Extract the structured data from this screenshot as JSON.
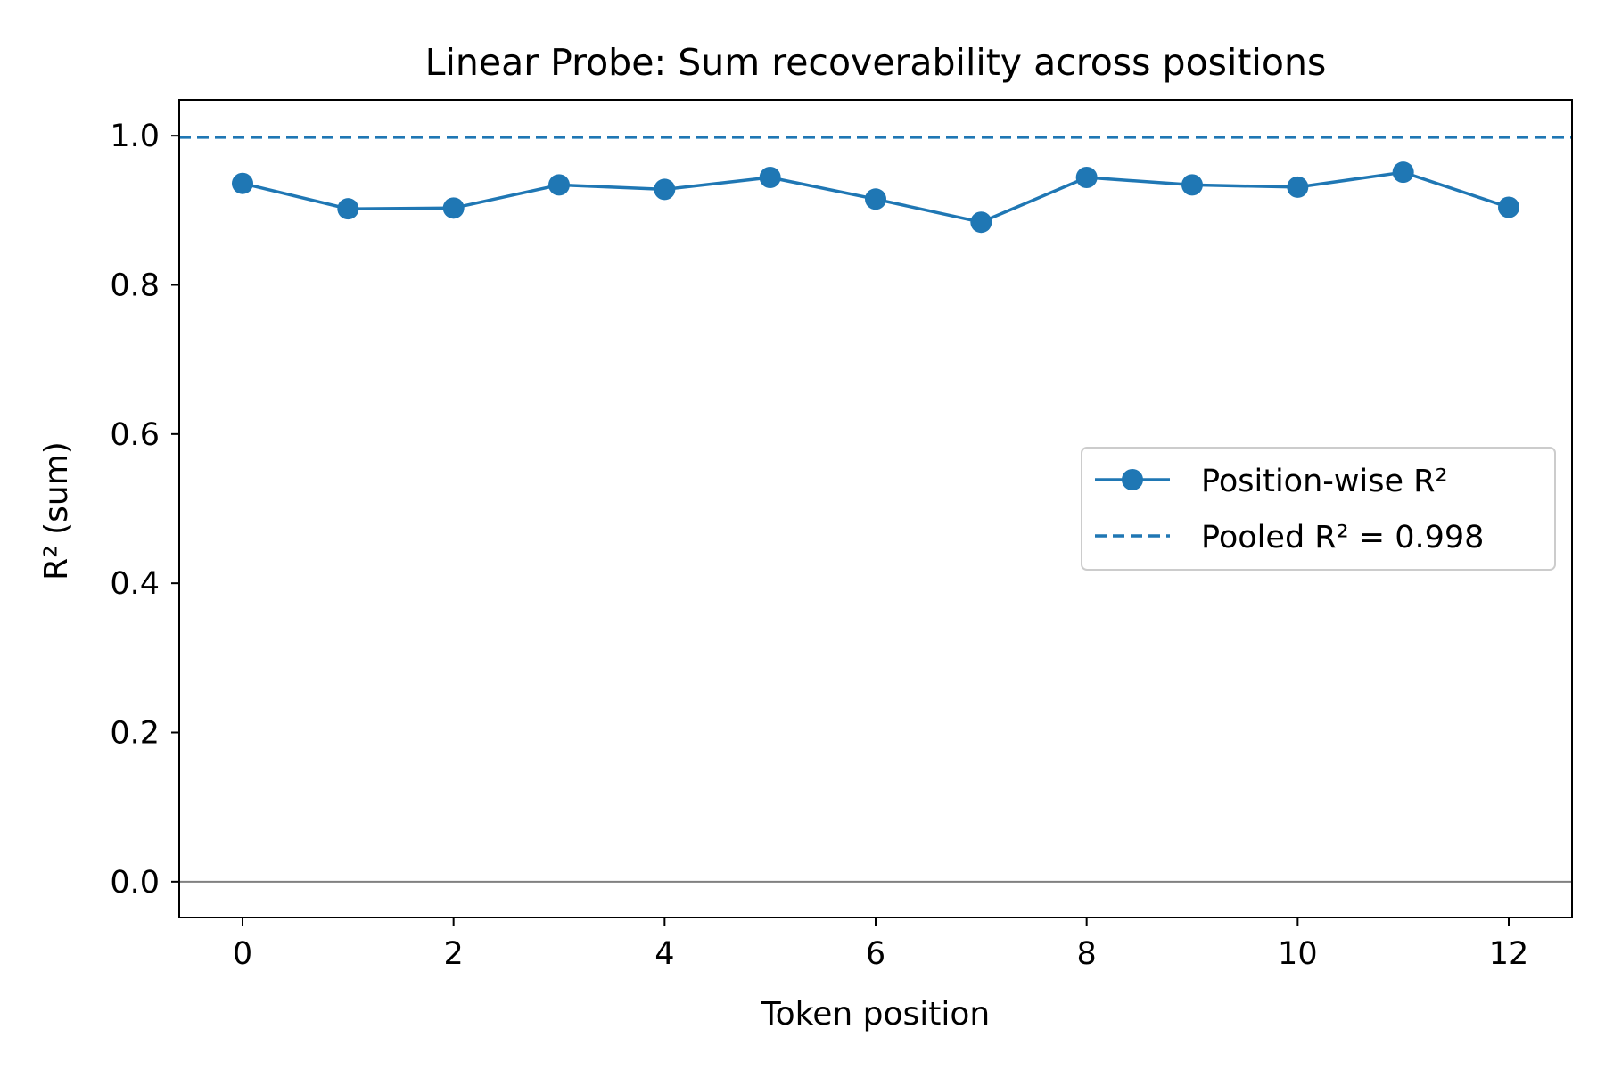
{
  "chart_data": {
    "type": "line",
    "title": "Linear Probe: Sum recoverability across positions",
    "xlabel": "Token position",
    "ylabel": "R² (sum)",
    "xlim": [
      -0.6,
      12.6
    ],
    "ylim": [
      -0.048,
      1.048
    ],
    "x_ticks": [
      0,
      2,
      4,
      6,
      8,
      10,
      12
    ],
    "x_tick_labels": [
      "0",
      "2",
      "4",
      "6",
      "8",
      "10",
      "12"
    ],
    "y_ticks": [
      0.0,
      0.2,
      0.4,
      0.6,
      0.8,
      1.0
    ],
    "y_tick_labels": [
      "0.0",
      "0.2",
      "0.4",
      "0.6",
      "0.8",
      "1.0"
    ],
    "grid": false,
    "legend_position": "center-right",
    "series": [
      {
        "name": "Position-wise R²",
        "style": "line-with-markers",
        "color": "#1f77b4",
        "x": [
          0,
          1,
          2,
          3,
          4,
          5,
          6,
          7,
          8,
          9,
          10,
          11,
          12
        ],
        "y": [
          0.936,
          0.902,
          0.903,
          0.934,
          0.928,
          0.944,
          0.915,
          0.884,
          0.944,
          0.934,
          0.931,
          0.951,
          0.904
        ]
      },
      {
        "name": "Pooled R² = 0.998",
        "style": "horizontal-dashed",
        "color": "#1f77b4",
        "y": 0.998
      }
    ],
    "reference_lines": [
      {
        "orientation": "horizontal",
        "y": 0.0,
        "color": "#808080"
      }
    ]
  }
}
